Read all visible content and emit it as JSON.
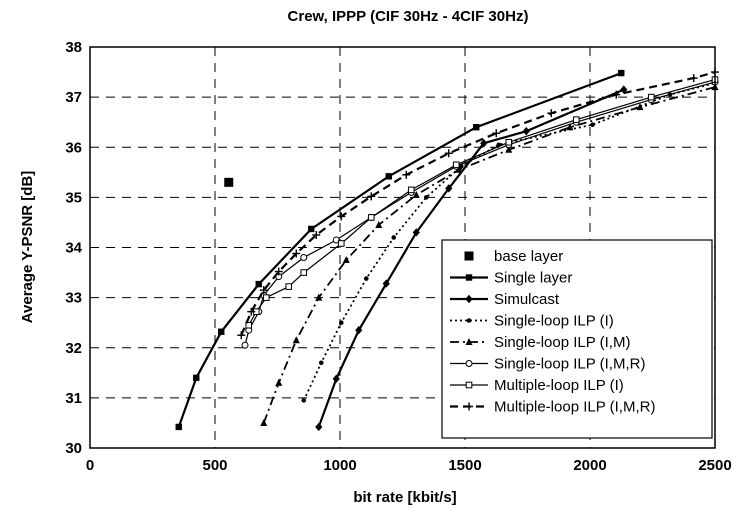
{
  "chart_data": {
    "type": "line",
    "title": "Crew, IPPP (CIF 30Hz - 4CIF 30Hz)",
    "xlabel": "bit rate [kbit/s]",
    "ylabel": "Average Y-PSNR [dB]",
    "xlim": [
      0,
      2500
    ],
    "ylim": [
      30,
      38
    ],
    "xticks": [
      0,
      500,
      1000,
      1500,
      2000,
      2500
    ],
    "yticks": [
      30,
      31,
      32,
      33,
      34,
      35,
      36,
      37,
      38
    ],
    "grid": true,
    "legend_position": "bottom-right",
    "series": [
      {
        "name": "base layer",
        "style": "point",
        "marker": "square-filled",
        "x": [
          555
        ],
        "y": [
          35.3
        ]
      },
      {
        "name": "Single layer",
        "style": "solid-thick",
        "marker": "square-filled",
        "x": [
          355,
          425,
          525,
          675,
          885,
          1195,
          1545,
          2125
        ],
        "y": [
          30.42,
          31.4,
          32.32,
          33.27,
          34.37,
          35.42,
          36.4,
          37.48
        ]
      },
      {
        "name": "Simulcast",
        "style": "solid-thick",
        "marker": "diamond-filled",
        "x": [
          915,
          985,
          1075,
          1185,
          1305,
          1435,
          1575,
          1745,
          2135
        ],
        "y": [
          30.42,
          31.38,
          32.35,
          33.28,
          34.3,
          35.18,
          36.08,
          36.32,
          37.15
        ]
      },
      {
        "name": "Single-loop ILP (I)",
        "style": "dotted",
        "marker": "dot-small",
        "x": [
          855,
          925,
          1005,
          1105,
          1215,
          1345,
          1485,
          1635,
          2010,
          2320,
          2500
        ],
        "y": [
          30.95,
          31.7,
          32.5,
          33.38,
          34.2,
          35.0,
          35.62,
          36.05,
          36.45,
          37.05,
          37.28
        ]
      },
      {
        "name": "Single-loop ILP (I,M)",
        "style": "dashdot",
        "marker": "triangle-filled",
        "x": [
          695,
          755,
          825,
          915,
          1025,
          1155,
          1305,
          1475,
          1675,
          1920,
          2200,
          2500
        ],
        "y": [
          30.5,
          31.3,
          32.15,
          33.0,
          33.75,
          34.45,
          35.05,
          35.55,
          35.95,
          36.4,
          36.8,
          37.2
        ]
      },
      {
        "name": "Single-loop ILP (I,M,R)",
        "style": "solid-thin",
        "marker": "circle-open",
        "x": [
          620,
          635,
          675,
          695,
          755,
          855,
          985,
          1125,
          1285,
          1465,
          1675,
          1945,
          2245,
          2500
        ],
        "y": [
          32.05,
          32.35,
          32.72,
          33.05,
          33.42,
          33.8,
          34.15,
          34.6,
          35.1,
          35.62,
          36.05,
          36.5,
          36.95,
          37.3
        ]
      },
      {
        "name": "Multiple-loop ILP (I)",
        "style": "solid-thin",
        "marker": "square-open",
        "x": [
          635,
          665,
          705,
          795,
          855,
          1005,
          1125,
          1285,
          1465,
          1675,
          1945,
          2245,
          2500
        ],
        "y": [
          32.45,
          32.72,
          33.0,
          33.22,
          33.5,
          34.08,
          34.6,
          35.15,
          35.65,
          36.1,
          36.55,
          37.0,
          37.35
        ]
      },
      {
        "name": "Multiple-loop ILP (I,M,R)",
        "style": "dashed-thick",
        "marker": "plus",
        "x": [
          605,
          645,
          695,
          755,
          825,
          905,
          1005,
          1125,
          1265,
          1435,
          1625,
          1845,
          2105,
          2415,
          2500
        ],
        "y": [
          32.25,
          32.72,
          33.15,
          33.52,
          33.88,
          34.25,
          34.62,
          35.02,
          35.45,
          35.88,
          36.28,
          36.68,
          37.05,
          37.38,
          37.5
        ]
      }
    ]
  }
}
